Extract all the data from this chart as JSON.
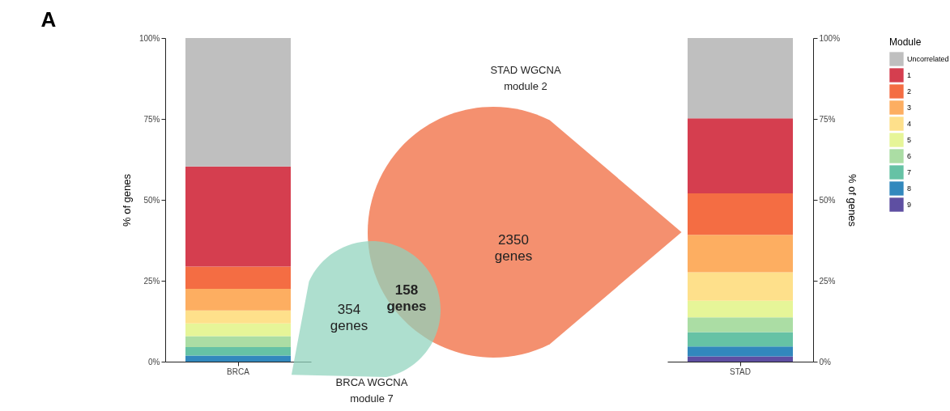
{
  "chart_data": [
    {
      "type": "bar",
      "title": "A",
      "categories": [
        "BRCA"
      ],
      "stacked": true,
      "ylabel": "% of genes",
      "ylim": [
        0,
        100
      ],
      "yticks": [
        {
          "value": 0,
          "label": "0%"
        },
        {
          "value": 25,
          "label": "25%"
        },
        {
          "value": 50,
          "label": "50%"
        },
        {
          "value": 75,
          "label": "75%"
        },
        {
          "value": 100,
          "label": "100%"
        }
      ],
      "series": [
        {
          "color": "#5e4fa2",
          "values": [
            0
          ]
        },
        {
          "color": "#3288bd",
          "values": [
            1.9
          ]
        },
        {
          "color": "#66c2a5",
          "values": [
            2.6
          ]
        },
        {
          "color": "#abdda4",
          "values": [
            3.4
          ]
        },
        {
          "color": "#e6f598",
          "values": [
            3.9
          ]
        },
        {
          "color": "#fee08b",
          "values": [
            4.0
          ]
        },
        {
          "color": "#fdae61",
          "values": [
            6.7
          ]
        },
        {
          "color": "#f46d43",
          "values": [
            6.9
          ]
        },
        {
          "color": "#d53e4f",
          "values": [
            30.9
          ]
        },
        {
          "color": "#bfbfbf",
          "values": [
            39.7
          ]
        }
      ]
    },
    {
      "type": "other",
      "annotations": [
        "STAD WGCNA\nmodule 2",
        "2350\ngenes",
        "158\ngenes",
        "354\ngenes",
        "BRCA WGCNA\nmodule 7"
      ]
    },
    {
      "type": "bar",
      "categories": [
        "STAD"
      ],
      "stacked": true,
      "ylabel": "% of genes",
      "legend": "right",
      "legend_title": "Module",
      "ylim": [
        0,
        100
      ],
      "yticks": [
        {
          "value": 0,
          "label": "0%"
        },
        {
          "value": 25,
          "label": "25%"
        },
        {
          "value": 50,
          "label": "50%"
        },
        {
          "value": 75,
          "label": "75%"
        },
        {
          "value": 100,
          "label": "100%"
        }
      ],
      "series": [
        {
          "name": "9",
          "color": "#5e4fa2",
          "values": [
            1.6
          ]
        },
        {
          "name": "8",
          "color": "#3288bd",
          "values": [
            3.1
          ]
        },
        {
          "name": "7",
          "color": "#66c2a5",
          "values": [
            4.4
          ]
        },
        {
          "name": "6",
          "color": "#abdda4",
          "values": [
            4.6
          ]
        },
        {
          "name": "5",
          "color": "#e6f598",
          "values": [
            5.1
          ]
        },
        {
          "name": "4",
          "color": "#fee08b",
          "values": [
            8.8
          ]
        },
        {
          "name": "3",
          "color": "#fdae61",
          "values": [
            11.6
          ]
        },
        {
          "name": "2",
          "color": "#f46d43",
          "values": [
            12.8
          ]
        },
        {
          "name": "1",
          "color": "#d53e4f",
          "values": [
            23.2
          ]
        },
        {
          "name": "Uncorrelated",
          "color": "#bfbfbf",
          "values": [
            24.8
          ]
        }
      ]
    }
  ]
}
